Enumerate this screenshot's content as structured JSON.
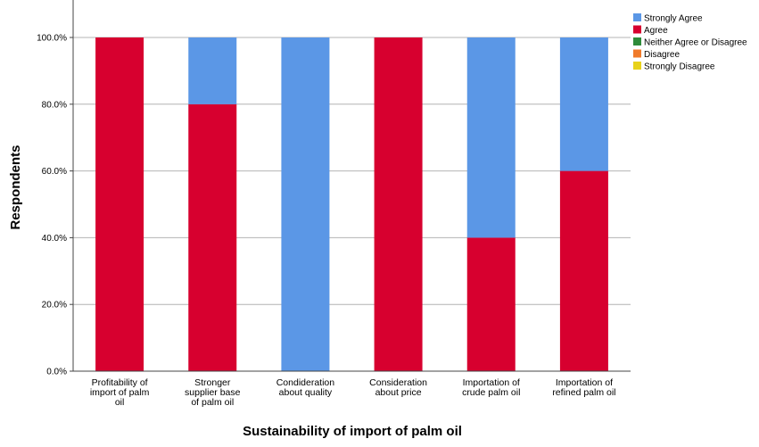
{
  "chart_data": {
    "type": "bar",
    "stacked": true,
    "title": "",
    "xlabel": "Sustainability of import of palm oil",
    "ylabel": "Respondents",
    "ylim": [
      0,
      100
    ],
    "yticks": [
      "0.0%",
      "20.0%",
      "40.0%",
      "60.0%",
      "80.0%",
      "100.0%"
    ],
    "grid": true,
    "legend_position": "top-right",
    "categories": [
      [
        "Profitability of",
        "import of palm",
        "oil"
      ],
      [
        "Stronger",
        "supplier base",
        "of palm oil"
      ],
      [
        "Condideration",
        "about quality"
      ],
      [
        "Consideration",
        "about price"
      ],
      [
        "Importation of",
        "crude palm oil"
      ],
      [
        "Importation of",
        "refined palm oil"
      ]
    ],
    "series": [
      {
        "name": "Strongly Agree",
        "color": "#5b97e6",
        "values": [
          0,
          20,
          100,
          0,
          60,
          40
        ]
      },
      {
        "name": "Agree",
        "color": "#d7002f",
        "values": [
          100,
          80,
          0,
          100,
          40,
          60
        ]
      },
      {
        "name": "Neither Agree or Disagree",
        "color": "#2e8b3a",
        "values": [
          0,
          0,
          0,
          0,
          0,
          0
        ]
      },
      {
        "name": "Disagree",
        "color": "#f07a2a",
        "values": [
          0,
          0,
          0,
          0,
          0,
          0
        ]
      },
      {
        "name": "Strongly Disagree",
        "color": "#e8d21a",
        "values": [
          0,
          0,
          0,
          0,
          0,
          0
        ]
      }
    ]
  }
}
